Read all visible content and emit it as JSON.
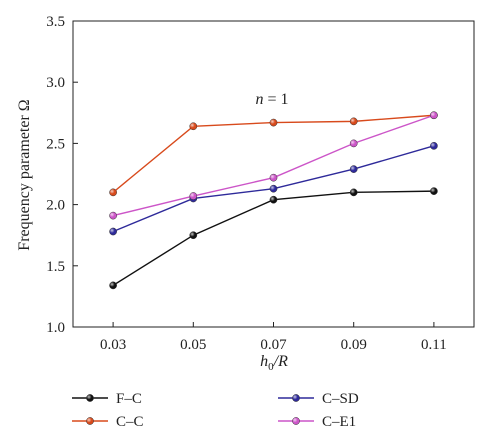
{
  "chart_data": {
    "type": "line",
    "title": "",
    "xlabel_main": "h",
    "xlabel_sub": "0",
    "xlabel_rest": "/R",
    "ylabel": "Frequency parameter Ω",
    "annotation_var": "n",
    "annotation_rest": " = 1",
    "x": [
      0.03,
      0.05,
      0.07,
      0.09,
      0.11
    ],
    "x_ticks": [
      "0.03",
      "0.05",
      "0.07",
      "0.09",
      "0.11"
    ],
    "y_ticks": [
      "1.0",
      "1.5",
      "2.0",
      "2.5",
      "3.0",
      "3.5"
    ],
    "xlim": [
      0.02,
      0.12
    ],
    "ylim": [
      1.0,
      3.5
    ],
    "grid": false,
    "legend_placement": "bottom",
    "series": [
      {
        "name": "F–C",
        "color": "#111111",
        "values": [
          1.34,
          1.75,
          2.04,
          2.1,
          2.11
        ]
      },
      {
        "name": "C–C",
        "color": "#d84a1c",
        "values": [
          2.1,
          2.64,
          2.67,
          2.68,
          2.73
        ]
      },
      {
        "name": "C–SD",
        "color": "#2e2a9a",
        "values": [
          1.78,
          2.05,
          2.13,
          2.29,
          2.48
        ]
      },
      {
        "name": "C–E1",
        "color": "#cc55c8",
        "values": [
          1.91,
          2.07,
          2.22,
          2.5,
          2.73
        ]
      }
    ]
  }
}
